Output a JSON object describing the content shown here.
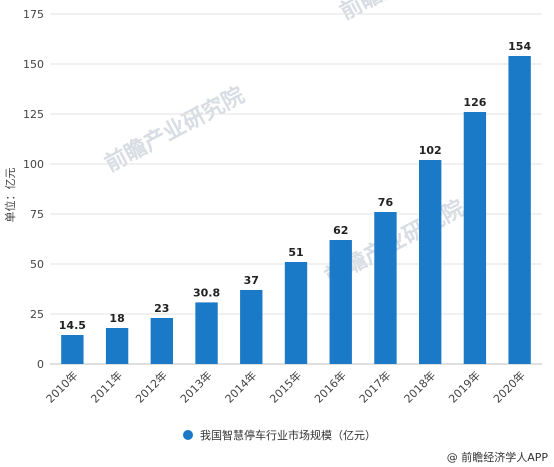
{
  "chart_data": {
    "type": "bar",
    "categories": [
      "2010年",
      "2011年",
      "2012年",
      "2013年",
      "2014年",
      "2015年",
      "2016年",
      "2017年",
      "2018年",
      "2019年",
      "2020年"
    ],
    "values": [
      14.5,
      18,
      23,
      30.8,
      37,
      51,
      62,
      76,
      102,
      126,
      154
    ],
    "value_labels": [
      "14.5",
      "18",
      "23",
      "30.8",
      "37",
      "51",
      "62",
      "76",
      "102",
      "126",
      "154"
    ],
    "ylabel": "单位：亿元",
    "ylim": [
      0,
      175
    ],
    "yticks": [
      0,
      25,
      50,
      75,
      100,
      125,
      150,
      175
    ],
    "grid": true,
    "legend": {
      "position": "bottom",
      "entries": [
        "我国智慧停车行业市场规模（亿元）"
      ]
    },
    "bar_color": "#1a7ac8"
  },
  "watermark": {
    "text": "前瞻产业研究院"
  },
  "source": {
    "text": "@ 前瞻经济学人APP"
  },
  "colors": {
    "bar": "#1a7ac8",
    "grid": "#e3e3e3",
    "axis": "#bfbfbf",
    "legend_dot": "#1a7ac8",
    "watermark": "#d8dde3"
  }
}
